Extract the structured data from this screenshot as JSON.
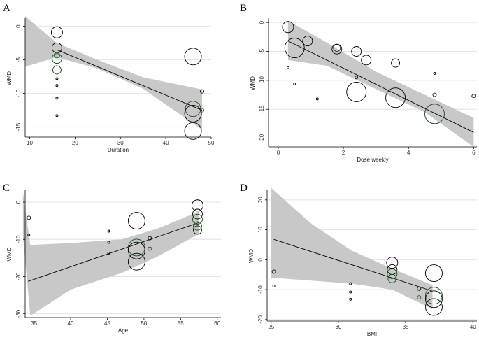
{
  "chart_data": [
    {
      "panel": "A",
      "type": "scatter",
      "xlabel": "Duration",
      "ylabel": "WMD",
      "xlim": [
        9,
        50
      ],
      "ylim": [
        -16.5,
        1
      ],
      "xticks": [
        10,
        20,
        30,
        40,
        50
      ],
      "yticks": [
        0,
        -5,
        -10,
        -15
      ],
      "grid": true,
      "fit_line": [
        [
          16,
          -3.5
        ],
        [
          48,
          -12.5
        ]
      ],
      "band": {
        "x": [
          9,
          16,
          25,
          35,
          48
        ],
        "upper": [
          1.5,
          -2.5,
          -5.0,
          -7.6,
          -9.4
        ],
        "lower": [
          -6.0,
          -4.6,
          -6.3,
          -9.3,
          -15.4
        ]
      },
      "points": [
        {
          "x": 16,
          "y": -0.9,
          "r": 8,
          "color": "#000000"
        },
        {
          "x": 16,
          "y": -3.2,
          "r": 7,
          "color": "#000000"
        },
        {
          "x": 16,
          "y": -4.3,
          "r": 4,
          "color": "#1a4d1a"
        },
        {
          "x": 16,
          "y": -4.8,
          "r": 7,
          "color": "#1a4d1a"
        },
        {
          "x": 16,
          "y": -6.5,
          "r": 6,
          "color": "#1a4d1a"
        },
        {
          "x": 16,
          "y": -7.8,
          "r": 1.5,
          "color": "#000000"
        },
        {
          "x": 16,
          "y": -8.8,
          "r": 1.5,
          "color": "#000000"
        },
        {
          "x": 16,
          "y": -10.7,
          "r": 1.5,
          "color": "#000000"
        },
        {
          "x": 16,
          "y": -13.3,
          "r": 1.5,
          "color": "#000000"
        },
        {
          "x": 46,
          "y": -4.5,
          "r": 12,
          "color": "#000000"
        },
        {
          "x": 46,
          "y": -12.3,
          "r": 11,
          "color": "#1a4d1a"
        },
        {
          "x": 46,
          "y": -13.0,
          "r": 12,
          "color": "#000000"
        },
        {
          "x": 46,
          "y": -15.6,
          "r": 12,
          "color": "#000000"
        },
        {
          "x": 48,
          "y": -9.7,
          "r": 2.5,
          "color": "#000000"
        },
        {
          "x": 48,
          "y": -12.5,
          "r": 2.5,
          "color": "#1a4d1a"
        }
      ]
    },
    {
      "panel": "B",
      "type": "scatter",
      "xlabel": "Dose weekly",
      "ylabel": "WMD",
      "xlim": [
        -0.3,
        6.1
      ],
      "ylim": [
        -21.5,
        0.5
      ],
      "xticks": [
        0,
        2,
        4,
        6
      ],
      "yticks": [
        0,
        -5,
        -10,
        -15,
        -20
      ],
      "grid": true,
      "fit_line": [
        [
          0.3,
          -3.2
        ],
        [
          6,
          -19.0
        ]
      ],
      "band": {
        "x": [
          0.3,
          1.5,
          3,
          4.5,
          6
        ],
        "upper": [
          0.3,
          -3.5,
          -8.5,
          -12.5,
          -16.5
        ],
        "lower": [
          -6.5,
          -7.5,
          -11.5,
          -15.5,
          -21.5
        ]
      },
      "points": [
        {
          "x": 0.3,
          "y": -0.8,
          "r": 8,
          "color": "#000000"
        },
        {
          "x": 0.3,
          "y": -7.8,
          "r": 1.5,
          "color": "#000000"
        },
        {
          "x": 0.5,
          "y": -4.4,
          "r": 14,
          "color": "#000000"
        },
        {
          "x": 0.5,
          "y": -10.6,
          "r": 1.5,
          "color": "#000000"
        },
        {
          "x": 0.9,
          "y": -3.2,
          "r": 7,
          "color": "#000000"
        },
        {
          "x": 1.2,
          "y": -13.2,
          "r": 1.5,
          "color": "#000000"
        },
        {
          "x": 1.8,
          "y": -4.4,
          "r": 5,
          "color": "#1a4d1a"
        },
        {
          "x": 1.8,
          "y": -4.6,
          "r": 7,
          "color": "#000000"
        },
        {
          "x": 2.4,
          "y": -5.0,
          "r": 7,
          "color": "#000000"
        },
        {
          "x": 2.4,
          "y": -9.5,
          "r": 2,
          "color": "#000000"
        },
        {
          "x": 2.4,
          "y": -12.0,
          "r": 14,
          "color": "#000000"
        },
        {
          "x": 2.7,
          "y": -6.5,
          "r": 7,
          "color": "#000000"
        },
        {
          "x": 3.6,
          "y": -7.0,
          "r": 6,
          "color": "#000000"
        },
        {
          "x": 3.6,
          "y": -13.0,
          "r": 14,
          "color": "#000000"
        },
        {
          "x": 4.8,
          "y": -8.8,
          "r": 1.5,
          "color": "#000000"
        },
        {
          "x": 4.8,
          "y": -12.5,
          "r": 2.5,
          "color": "#000000"
        },
        {
          "x": 4.8,
          "y": -15.8,
          "r": 14,
          "color": "#1a4d1a"
        },
        {
          "x": 6.0,
          "y": -12.7,
          "r": 2.5,
          "color": "#000000"
        }
      ]
    },
    {
      "panel": "C",
      "type": "scatter",
      "xlabel": "Age",
      "ylabel": "WMD",
      "xlim": [
        33.8,
        60.5
      ],
      "ylim": [
        -31,
        3
      ],
      "xticks": [
        35,
        40,
        45,
        50,
        55,
        60
      ],
      "yticks": [
        0,
        -10,
        -20,
        -30
      ],
      "grid": true,
      "fit_line": [
        [
          34.2,
          -21.3
        ],
        [
          57.5,
          -5.5
        ]
      ],
      "band": {
        "x": [
          33.5,
          34.5,
          40,
          47,
          52,
          57.5
        ],
        "upper": [
          2.5,
          -11.5,
          -11.0,
          -10.0,
          -7.0,
          -2.5
        ],
        "lower": [
          -9.0,
          -30.5,
          -23.5,
          -19.0,
          -14.5,
          -8.5
        ]
      },
      "points": [
        {
          "x": 34.3,
          "y": -4.2,
          "r": 2.5,
          "color": "#000000"
        },
        {
          "x": 34.3,
          "y": -8.8,
          "r": 1.5,
          "color": "#000000"
        },
        {
          "x": 45.2,
          "y": -7.8,
          "r": 1.5,
          "color": "#000000"
        },
        {
          "x": 45.2,
          "y": -10.8,
          "r": 1.5,
          "color": "#000000"
        },
        {
          "x": 45.2,
          "y": -13.7,
          "r": 1.5,
          "color": "#000000"
        },
        {
          "x": 49.0,
          "y": -5.0,
          "r": 12,
          "color": "#000000"
        },
        {
          "x": 49.0,
          "y": -12.2,
          "r": 12,
          "color": "#1a4d1a"
        },
        {
          "x": 49.0,
          "y": -13.0,
          "r": 12,
          "color": "#000000"
        },
        {
          "x": 49.0,
          "y": -16.0,
          "r": 12,
          "color": "#000000"
        },
        {
          "x": 50.8,
          "y": -9.7,
          "r": 2.5,
          "color": "#000000"
        },
        {
          "x": 50.8,
          "y": -12.5,
          "r": 2.5,
          "color": "#1a4d1a"
        },
        {
          "x": 57.3,
          "y": -0.9,
          "r": 8,
          "color": "#000000"
        },
        {
          "x": 57.3,
          "y": -3.2,
          "r": 7,
          "color": "#000000"
        },
        {
          "x": 57.3,
          "y": -4.6,
          "r": 7,
          "color": "#1a4d1a"
        },
        {
          "x": 57.3,
          "y": -6.4,
          "r": 6,
          "color": "#1a4d1a"
        },
        {
          "x": 57.3,
          "y": -7.5,
          "r": 6,
          "color": "#000000"
        }
      ]
    },
    {
      "panel": "D",
      "type": "scatter",
      "xlabel": "BMI",
      "ylabel": "WMD",
      "xlim": [
        24.7,
        40.3
      ],
      "ylim": [
        -20.5,
        23
      ],
      "xticks": [
        25,
        30,
        35,
        40
      ],
      "yticks": [
        20,
        10,
        0,
        -10,
        -20
      ],
      "grid": true,
      "fit_line": [
        [
          25.2,
          6.8
        ],
        [
          37,
          -10.5
        ]
      ],
      "band": {
        "x": [
          25,
          28,
          31,
          34,
          37
        ],
        "upper": [
          24.0,
          12.0,
          3.0,
          -3.0,
          -8.5
        ],
        "lower": [
          -6.0,
          -7.0,
          -8.0,
          -10.0,
          -16.5
        ]
      },
      "points": [
        {
          "x": 25.2,
          "y": -4.0,
          "r": 2.5,
          "color": "#000000"
        },
        {
          "x": 25.2,
          "y": -8.8,
          "r": 1.5,
          "color": "#000000"
        },
        {
          "x": 30.9,
          "y": -8.0,
          "r": 1.5,
          "color": "#000000"
        },
        {
          "x": 30.9,
          "y": -10.8,
          "r": 1.5,
          "color": "#000000"
        },
        {
          "x": 30.9,
          "y": -13.2,
          "r": 1.5,
          "color": "#000000"
        },
        {
          "x": 34.0,
          "y": -1.0,
          "r": 8,
          "color": "#000000"
        },
        {
          "x": 34.0,
          "y": -3.3,
          "r": 7,
          "color": "#000000"
        },
        {
          "x": 34.0,
          "y": -4.7,
          "r": 7,
          "color": "#1a4d1a"
        },
        {
          "x": 34.0,
          "y": -6.3,
          "r": 6,
          "color": "#1a4d1a"
        },
        {
          "x": 36.0,
          "y": -9.7,
          "r": 2.5,
          "color": "#000000"
        },
        {
          "x": 36.0,
          "y": -12.6,
          "r": 2.5,
          "color": "#1a4d1a"
        },
        {
          "x": 37.1,
          "y": -4.5,
          "r": 12,
          "color": "#000000"
        },
        {
          "x": 37.1,
          "y": -12.0,
          "r": 12,
          "color": "#1a4d1a"
        },
        {
          "x": 37.1,
          "y": -13.2,
          "r": 12,
          "color": "#000000"
        },
        {
          "x": 37.1,
          "y": -15.8,
          "r": 12,
          "color": "#000000"
        }
      ]
    }
  ],
  "style": {
    "band_fill": "#c8c8c8",
    "grid_color": "#e4e4e4",
    "line_color": "#000000",
    "axis_color": "#000000"
  }
}
